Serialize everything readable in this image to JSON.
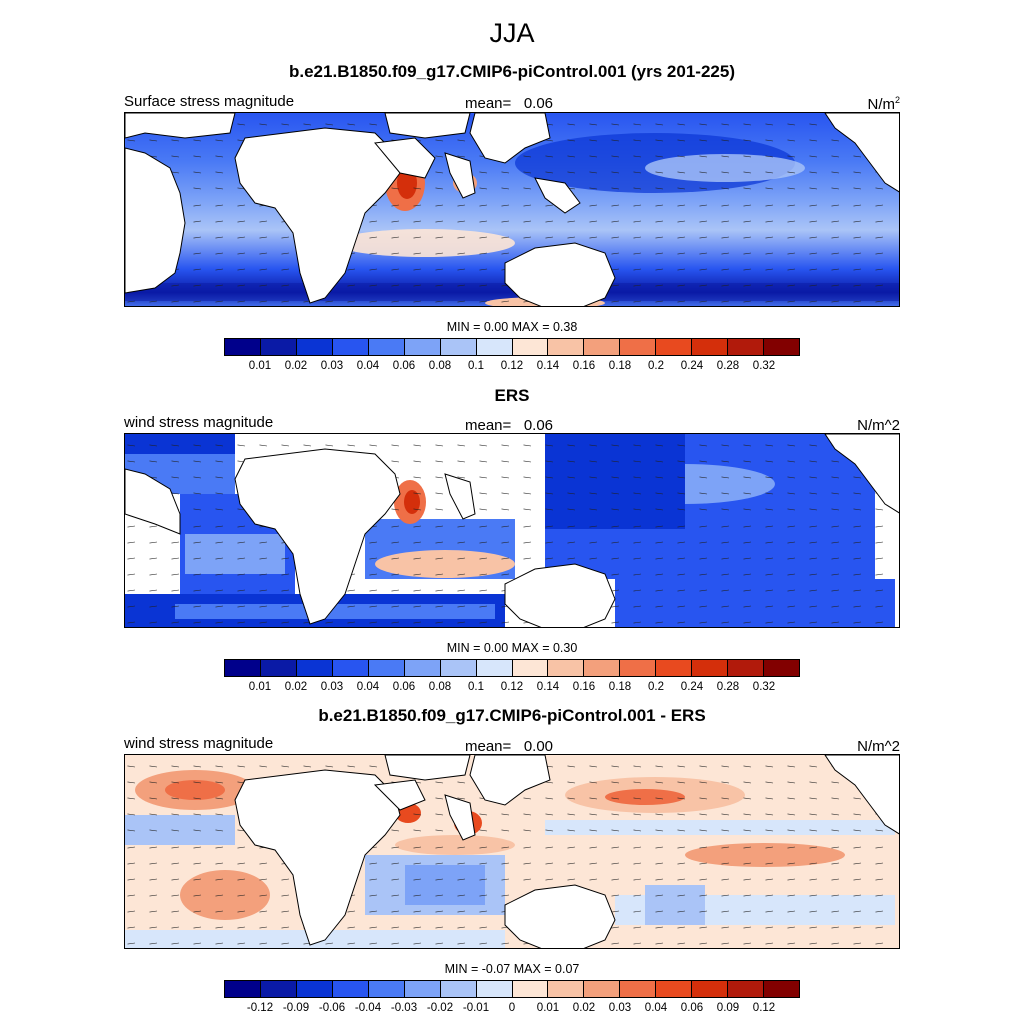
{
  "season": "JJA",
  "colors": [
    "#00008b",
    "#0a1aa6",
    "#0a34d4",
    "#2855f0",
    "#4a7af5",
    "#7da3f7",
    "#aac4f7",
    "#d7e6fb",
    "#fde6d6",
    "#f8c3a6",
    "#f3a07c",
    "#ef6f47",
    "#e84a1f",
    "#d42f0b",
    "#b11a0b",
    "#820000"
  ],
  "panels": [
    {
      "title": "b.e21.B1850.f09_g17.CMIP6-piControl.001 (yrs 201-225)",
      "left": "Surface stress magnitude",
      "mean_label": "mean=",
      "mean_value": "0.06",
      "units_base": "N/m",
      "units_sup": "2",
      "minmax": "MIN =   0.00 MAX =   0.38",
      "ticks": [
        "0.01",
        "0.02",
        "0.03",
        "0.04",
        "0.06",
        "0.08",
        "0.1",
        "0.12",
        "0.14",
        "0.16",
        "0.18",
        "0.2",
        "0.24",
        "0.28",
        "0.32"
      ]
    },
    {
      "title": "ERS",
      "left": "wind stress magnitude",
      "mean_label": "mean=",
      "mean_value": "0.06",
      "units": "N/m^2",
      "minmax": "MIN =   0.00 MAX =   0.30",
      "ticks": [
        "0.01",
        "0.02",
        "0.03",
        "0.04",
        "0.06",
        "0.08",
        "0.1",
        "0.12",
        "0.14",
        "0.16",
        "0.18",
        "0.2",
        "0.24",
        "0.28",
        "0.32"
      ]
    },
    {
      "title": "b.e21.B1850.f09_g17.CMIP6-piControl.001 - ERS",
      "left": "wind stress magnitude",
      "mean_label": "mean=",
      "mean_value": "0.00",
      "units": "N/m^2",
      "minmax": "MIN =  -0.07 MAX =   0.07",
      "ticks": [
        "-0.12",
        "-0.09",
        "-0.06",
        "-0.04",
        "-0.03",
        "-0.02",
        "-0.01",
        "0",
        "0.01",
        "0.02",
        "0.03",
        "0.04",
        "0.06",
        "0.09",
        "0.12"
      ]
    }
  ]
}
